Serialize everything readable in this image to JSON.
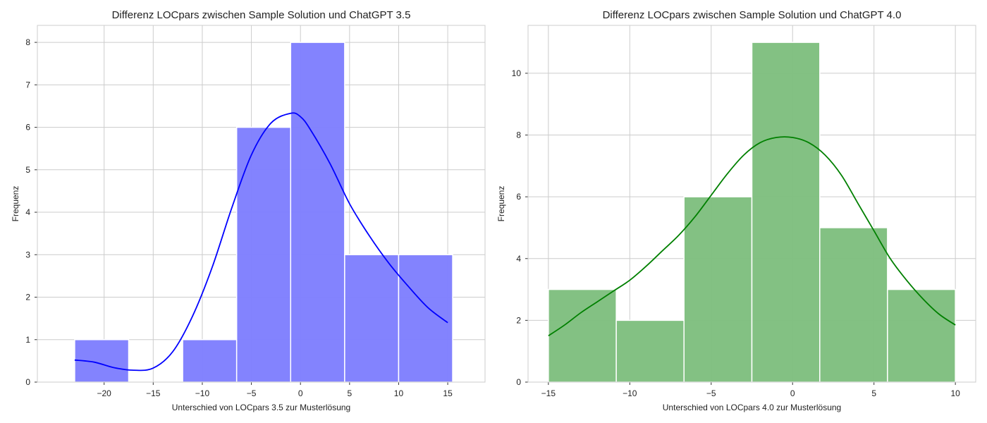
{
  "chart_data": [
    {
      "type": "histogram",
      "title": "Differenz LOCpars zwischen Sample Solution und ChatGPT 3.5",
      "xlabel": "Unterschied von LOCpars 3.5 zur Musterlösung",
      "ylabel": "Frequenz",
      "xlim": [
        -26.8,
        18.8
      ],
      "ylim": [
        0,
        8.4
      ],
      "xticks": [
        -20,
        -15,
        -10,
        -5,
        0,
        5,
        10,
        15
      ],
      "yticks": [
        0,
        1,
        2,
        3,
        4,
        5,
        6,
        7,
        8
      ],
      "grid": true,
      "bar_color": "#7f7ffe",
      "line_color": "#0000ff",
      "bins": [
        {
          "x0": -23.0,
          "x1": -17.5,
          "count": 1
        },
        {
          "x0": -17.5,
          "x1": -12.0,
          "count": 0
        },
        {
          "x0": -12.0,
          "x1": -6.5,
          "count": 1
        },
        {
          "x0": -6.5,
          "x1": -1.0,
          "count": 6
        },
        {
          "x0": -1.0,
          "x1": 4.5,
          "count": 8
        },
        {
          "x0": 4.5,
          "x1": 10.0,
          "count": 3
        },
        {
          "x0": 10.0,
          "x1": 15.5,
          "count": 3
        }
      ],
      "kde": {
        "x": [
          -23,
          -21,
          -19,
          -17,
          -15,
          -13,
          -11,
          -9,
          -7,
          -5,
          -3,
          -1,
          0,
          1,
          3,
          5,
          7,
          9,
          11,
          13,
          15
        ],
        "y": [
          0.52,
          0.47,
          0.34,
          0.28,
          0.33,
          0.72,
          1.55,
          2.7,
          4.1,
          5.35,
          6.1,
          6.33,
          6.25,
          5.95,
          5.15,
          4.2,
          3.45,
          2.8,
          2.25,
          1.75,
          1.4
        ]
      }
    },
    {
      "type": "histogram",
      "title": "Differenz LOCpars zwischen Sample Solution und ChatGPT 4.0",
      "xlabel": "Unterschied von LOCpars 4.0 zur Musterlösung",
      "ylabel": "Frequenz",
      "xlim": [
        -16.25,
        11.25
      ],
      "ylim": [
        0,
        11.55
      ],
      "xticks": [
        -15,
        -10,
        -5,
        0,
        5,
        10
      ],
      "yticks": [
        0,
        2,
        4,
        6,
        8,
        10
      ],
      "grid": true,
      "bar_color": "#7fbf7f",
      "line_color": "#008000",
      "bins": [
        {
          "x0": -15.0,
          "x1": -10.83,
          "count": 3
        },
        {
          "x0": -10.83,
          "x1": -6.67,
          "count": 2
        },
        {
          "x0": -6.67,
          "x1": -2.5,
          "count": 6
        },
        {
          "x0": -2.5,
          "x1": 1.67,
          "count": 11
        },
        {
          "x0": 1.67,
          "x1": 5.83,
          "count": 5
        },
        {
          "x0": 5.83,
          "x1": 10.0,
          "count": 3
        }
      ],
      "kde": {
        "x": [
          -15,
          -14,
          -13,
          -12,
          -11,
          -10,
          -9,
          -8,
          -7,
          -6,
          -5,
          -4,
          -3,
          -2,
          -1,
          0,
          1,
          2,
          3,
          4,
          5,
          6,
          7,
          8,
          9,
          10
        ],
        "y": [
          1.5,
          1.85,
          2.25,
          2.6,
          2.95,
          3.3,
          3.75,
          4.25,
          4.75,
          5.35,
          6.05,
          6.75,
          7.35,
          7.75,
          7.92,
          7.92,
          7.75,
          7.35,
          6.7,
          5.8,
          4.9,
          4.0,
          3.3,
          2.7,
          2.2,
          1.85
        ]
      }
    }
  ]
}
